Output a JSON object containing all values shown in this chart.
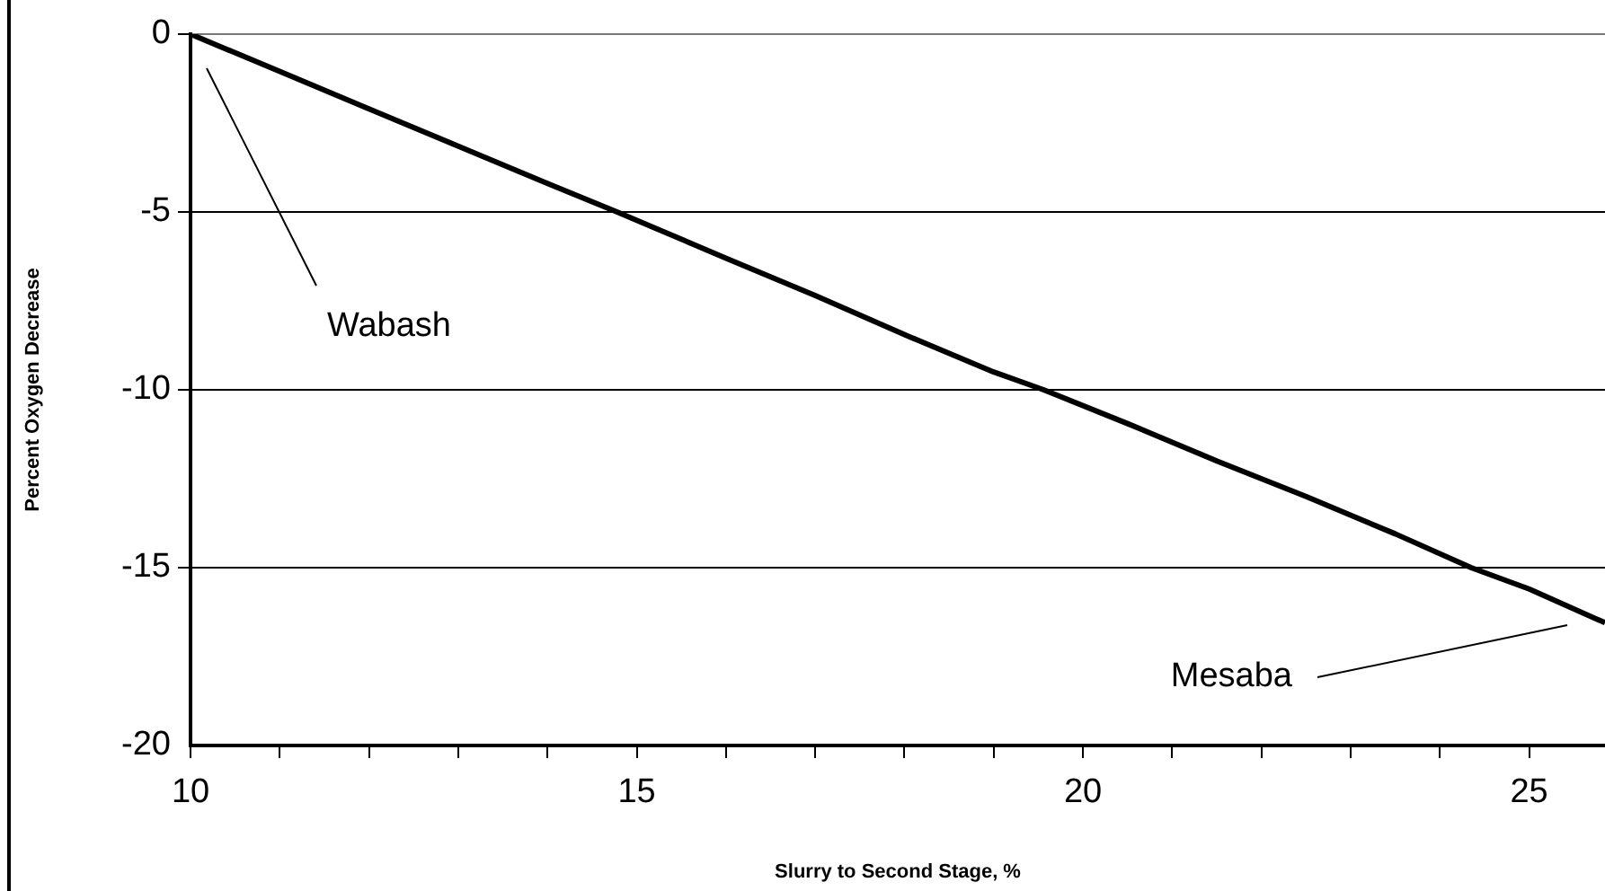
{
  "chart_data": {
    "type": "line",
    "xlabel": "Slurry to Second Stage, %",
    "ylabel": "Percent Oxygen Decrease",
    "x": [
      10,
      11,
      12,
      13,
      14,
      14.78,
      16,
      17,
      18,
      19,
      19.56,
      20.5,
      21.5,
      22.5,
      23.5,
      24.35,
      25,
      25.85
    ],
    "series": [
      {
        "color": "#000000",
        "values": [
          0,
          -1.05,
          -2.1,
          -3.15,
          -4.2,
          -5,
          -6.3,
          -7.35,
          -8.45,
          -9.5,
          -10,
          -10.95,
          -12,
          -13,
          -14.05,
          -15,
          -15.6,
          -16.55
        ]
      }
    ],
    "xlim": [
      10,
      25.85
    ],
    "xticks": [
      10,
      {
        "value": 11,
        "label": null
      },
      {
        "value": 12,
        "label": null
      },
      {
        "value": 13,
        "label": null
      },
      {
        "value": 14,
        "label": null
      },
      15,
      {
        "value": 16,
        "label": null
      },
      {
        "value": 17,
        "label": null
      },
      {
        "value": 18,
        "label": null
      },
      {
        "value": 19,
        "label": null
      },
      20,
      {
        "value": 21,
        "label": null
      },
      {
        "value": 22,
        "label": null
      },
      {
        "value": 23,
        "label": null
      },
      {
        "value": 24,
        "label": null
      },
      25
    ],
    "ylim": [
      -20,
      0
    ],
    "yticks": [
      -20,
      -15,
      -10,
      -5,
      0
    ],
    "grid": "y",
    "legend": false,
    "marker": "none",
    "line_style": "solid",
    "annotations": [
      "Wabash",
      "Mesaba"
    ]
  }
}
